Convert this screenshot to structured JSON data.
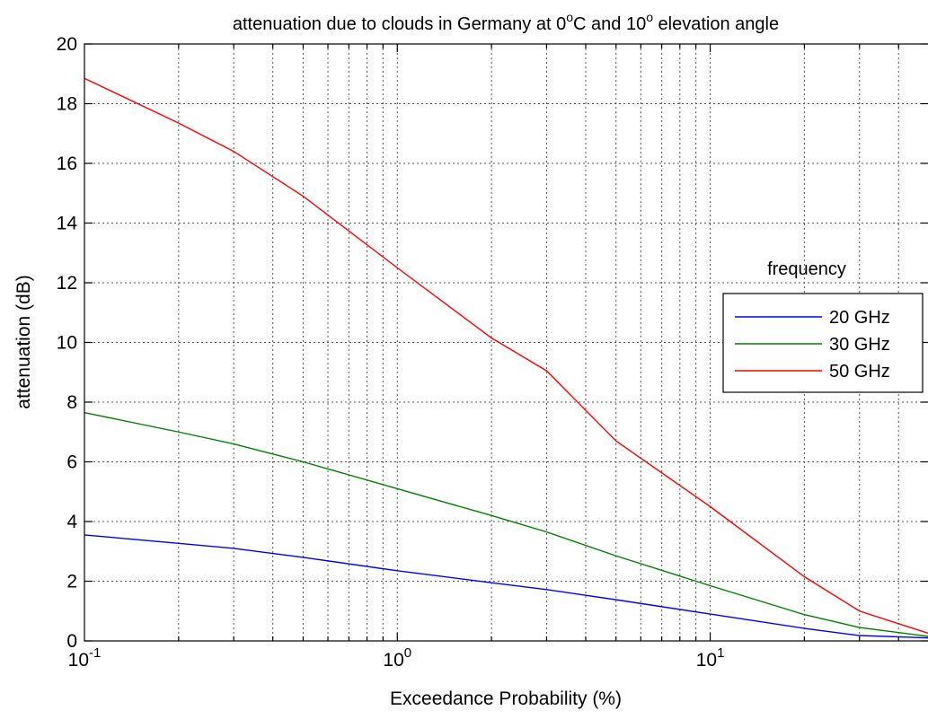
{
  "chart_data": {
    "type": "line",
    "title": "attenuation due to clouds  in Germany at 0°C and 10° elevation angle",
    "title_parts": {
      "pre": "attenuation due to clouds  in Germany at 0",
      "sup1": "o",
      "mid": "C and 10",
      "sup2": "o",
      "post": " elevation angle"
    },
    "xlabel": "Exceedance Probability (%)",
    "ylabel": "attenuation  (dB)",
    "xscale": "log",
    "xlim": [
      0.1,
      50
    ],
    "ylim": [
      0,
      20
    ],
    "grid": true,
    "x_ticks": [
      {
        "value": 0.1,
        "base": "10",
        "exp": "-1"
      },
      {
        "value": 1,
        "base": "10",
        "exp": "0"
      },
      {
        "value": 10,
        "base": "10",
        "exp": "1"
      }
    ],
    "y_ticks": [
      "0",
      "2",
      "4",
      "6",
      "8",
      "10",
      "12",
      "14",
      "16",
      "18",
      "20"
    ],
    "legend": {
      "title": "frequency",
      "placement": "right",
      "entries": [
        "20 GHz",
        "30 GHz",
        "50 GHz"
      ]
    },
    "x": [
      0.1,
      0.2,
      0.3,
      0.5,
      1,
      2,
      3,
      5,
      10,
      20,
      30,
      50
    ],
    "series": [
      {
        "name": "20 GHz",
        "color": "#0000ff",
        "values": [
          3.55,
          3.27,
          3.1,
          2.8,
          2.35,
          1.95,
          1.72,
          1.38,
          0.9,
          0.42,
          0.18,
          0.1
        ]
      },
      {
        "name": "30 GHz",
        "color": "#008000",
        "values": [
          7.65,
          7.0,
          6.6,
          6.0,
          5.1,
          4.2,
          3.65,
          2.85,
          1.85,
          0.88,
          0.45,
          0.15
        ]
      },
      {
        "name": "50 GHz",
        "color": "#ff0000",
        "values": [
          18.85,
          17.35,
          16.4,
          14.9,
          12.5,
          10.15,
          9.05,
          6.7,
          4.5,
          2.15,
          1.0,
          0.25
        ]
      }
    ]
  }
}
